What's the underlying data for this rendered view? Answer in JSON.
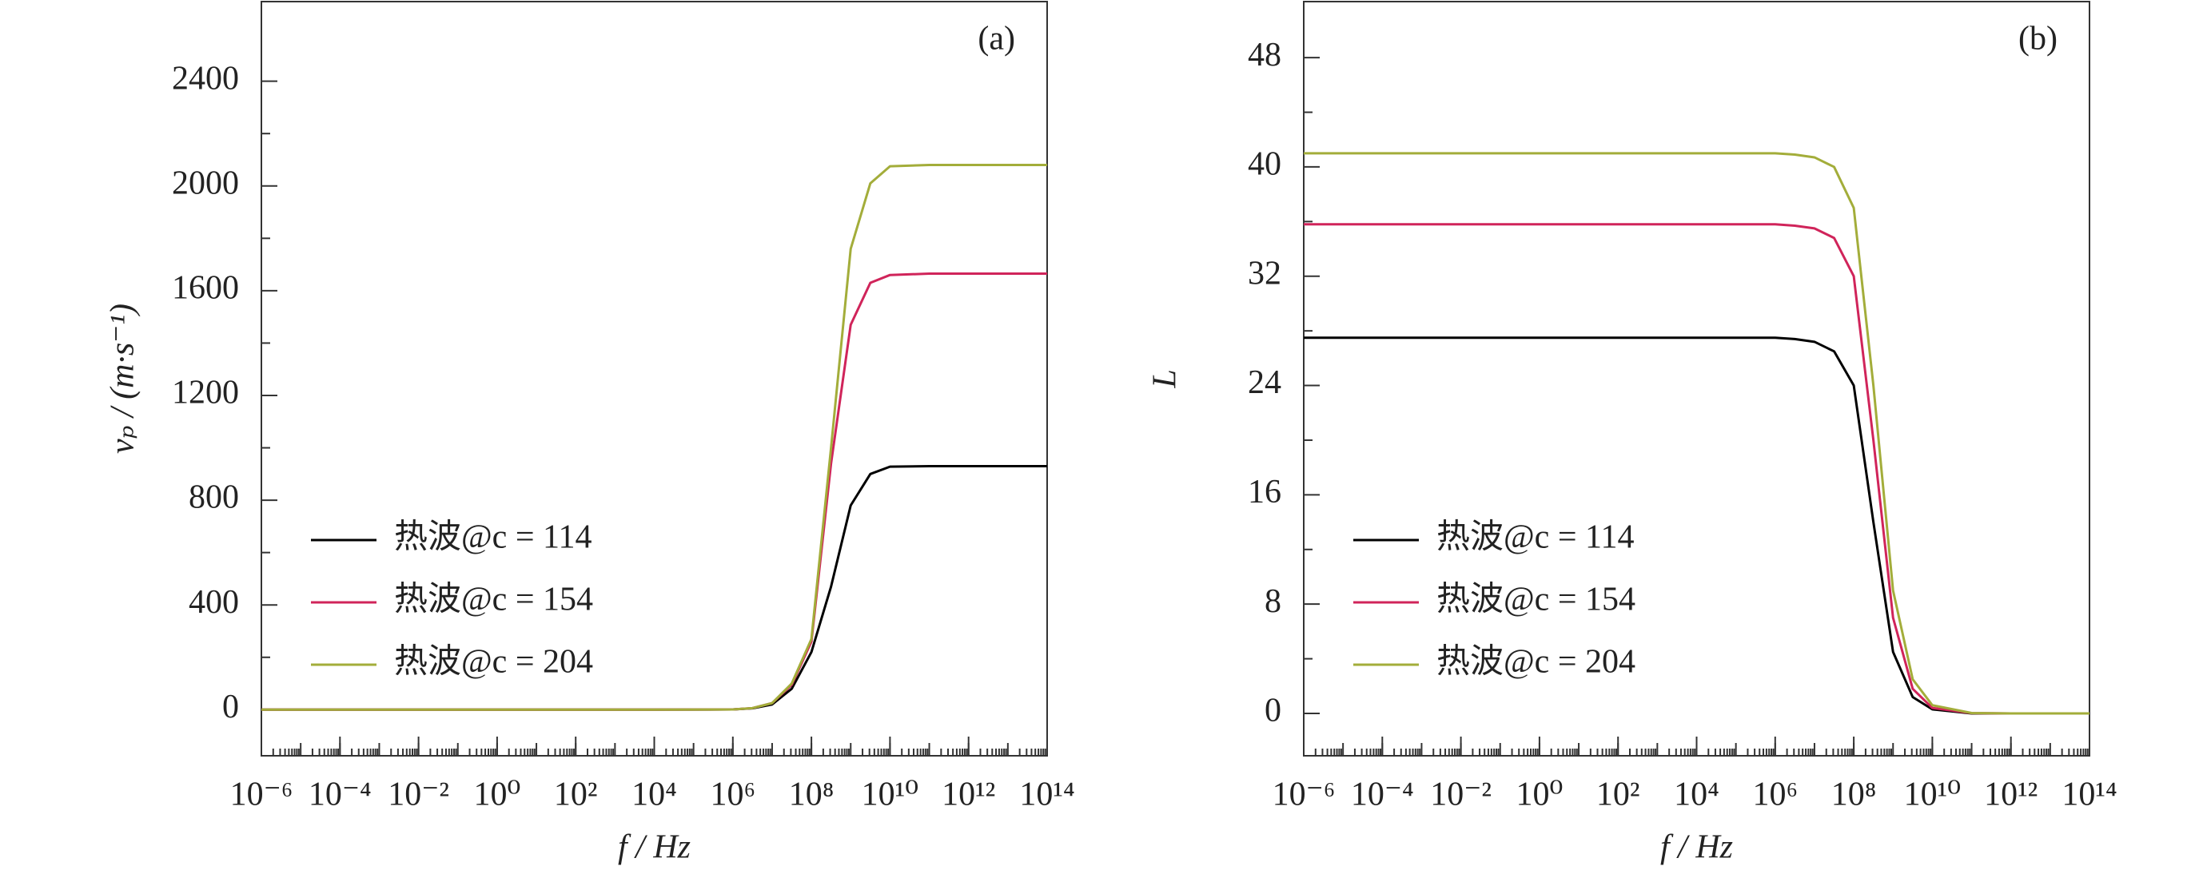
{
  "chart_data": [
    {
      "type": "line",
      "annotation": "(a)",
      "xlabel": "f / Hz",
      "ylabel": "vₚ / (m·s⁻¹)",
      "xscale": "log",
      "legend": "lower left",
      "x": [
        1e-06,
        0.0001,
        0.01,
        1,
        100,
        10000,
        1000000,
        3160000,
        10000000,
        31600000,
        100000000,
        316000000,
        1000000000,
        3160000000,
        10000000000,
        100000000000,
        1000000000000,
        100000000000000
      ],
      "xlim": [
        1e-06,
        100000000000000.0
      ],
      "xticks": [
        {
          "value": 1e-06,
          "label": "10⁻⁶"
        },
        {
          "value": 0.0001,
          "label": "10⁻⁴"
        },
        {
          "value": 0.01,
          "label": "10⁻²"
        },
        {
          "value": 1,
          "label": "10⁰"
        },
        {
          "value": 100,
          "label": "10²"
        },
        {
          "value": 10000,
          "label": "10⁴"
        },
        {
          "value": 1000000,
          "label": "10⁶"
        },
        {
          "value": 100000000,
          "label": "10⁸"
        },
        {
          "value": 10000000000,
          "label": "10¹⁰"
        },
        {
          "value": 1000000000000,
          "label": "10¹²"
        },
        {
          "value": 100000000000000,
          "label": "10¹⁴"
        }
      ],
      "ylim": [
        -176,
        2704
      ],
      "yticks": [
        0,
        400,
        800,
        1200,
        1600,
        2000,
        2400
      ],
      "series": [
        {
          "name": "热波@c = 114",
          "color": "#000000",
          "values": [
            0,
            0,
            0,
            0,
            0,
            0,
            1,
            5,
            20,
            80,
            220,
            470,
            780,
            900,
            928,
            930,
            930,
            930
          ]
        },
        {
          "name": "热波@c = 154",
          "color": "#d0245a",
          "values": [
            0,
            0,
            0,
            0,
            0,
            0,
            1,
            6,
            25,
            95,
            260,
            940,
            1470,
            1630,
            1660,
            1665,
            1665,
            1665
          ]
        },
        {
          "name": "热波@c = 204",
          "color": "#a3ad3a",
          "values": [
            0,
            0,
            0,
            0,
            0,
            0,
            1,
            6,
            25,
            100,
            270,
            1000,
            1760,
            2010,
            2075,
            2080,
            2080,
            2080
          ]
        }
      ]
    },
    {
      "type": "line",
      "annotation": "(b)",
      "xlabel": "f / Hz",
      "ylabel": "L",
      "xscale": "log",
      "legend": "lower left",
      "x": [
        1e-06,
        0.0001,
        0.01,
        1,
        100,
        10000,
        1000000,
        3160000,
        10000000,
        31600000,
        100000000,
        316000000,
        1000000000,
        3160000000,
        10000000000,
        100000000000,
        1000000000000,
        100000000000000
      ],
      "xlim": [
        1e-06,
        100000000000000.0
      ],
      "xticks": [
        {
          "value": 1e-06,
          "label": "10⁻⁶"
        },
        {
          "value": 0.0001,
          "label": "10⁻⁴"
        },
        {
          "value": 0.01,
          "label": "10⁻²"
        },
        {
          "value": 1,
          "label": "10⁰"
        },
        {
          "value": 100,
          "label": "10²"
        },
        {
          "value": 10000,
          "label": "10⁴"
        },
        {
          "value": 1000000,
          "label": "10⁶"
        },
        {
          "value": 100000000,
          "label": "10⁸"
        },
        {
          "value": 10000000000,
          "label": "10¹⁰"
        },
        {
          "value": 1000000000000,
          "label": "10¹²"
        },
        {
          "value": 100000000000000,
          "label": "10¹⁴"
        }
      ],
      "ylim": [
        -3.1,
        52.1
      ],
      "yticks": [
        0,
        8,
        16,
        24,
        32,
        40,
        48
      ],
      "series": [
        {
          "name": "热波@c = 114",
          "color": "#000000",
          "values": [
            27.5,
            27.5,
            27.5,
            27.5,
            27.5,
            27.5,
            27.5,
            27.4,
            27.2,
            26.5,
            24,
            14,
            4.5,
            1.2,
            0.3,
            0,
            0,
            0
          ]
        },
        {
          "name": "热波@c = 154",
          "color": "#d0245a",
          "values": [
            35.8,
            35.8,
            35.8,
            35.8,
            35.8,
            35.8,
            35.8,
            35.7,
            35.5,
            34.8,
            32,
            20,
            7,
            1.8,
            0.4,
            0.02,
            0,
            0
          ]
        },
        {
          "name": "热波@c = 204",
          "color": "#a3ad3a",
          "values": [
            41,
            41,
            41,
            41,
            41,
            41,
            41,
            40.9,
            40.7,
            40,
            37,
            24,
            9,
            2.5,
            0.6,
            0.03,
            0,
            0
          ]
        }
      ]
    }
  ]
}
